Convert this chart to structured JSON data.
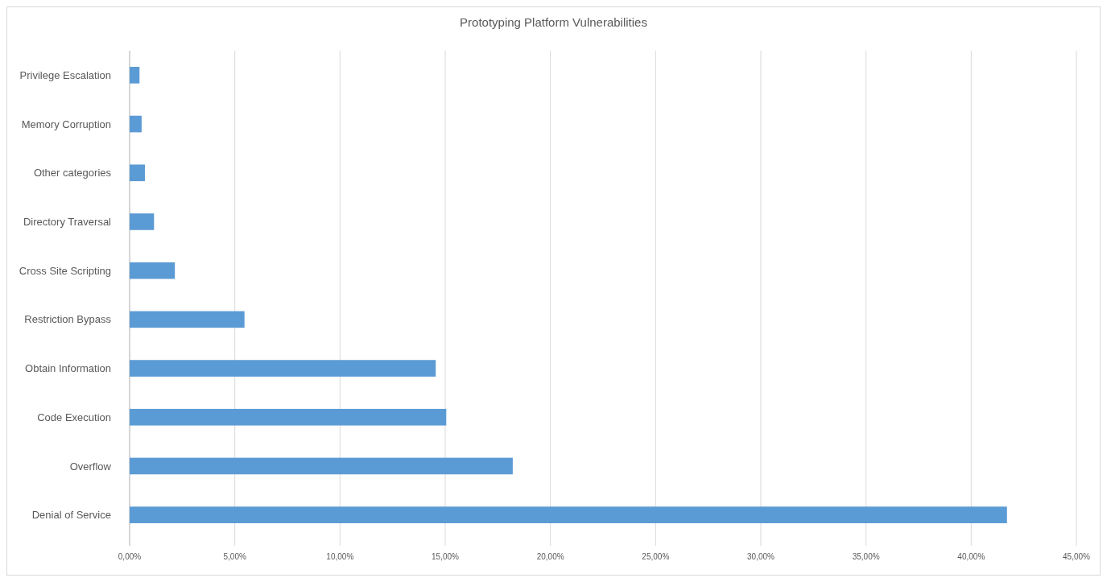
{
  "chart_data": {
    "type": "bar",
    "orientation": "horizontal",
    "title": "Prototyping Platform Vulnerabilities",
    "categories": [
      "Privilege Escalation",
      "Memory Corruption",
      "Other categories",
      "Directory Traversal",
      "Cross Site Scripting",
      "Restriction Bypass",
      "Obtain Information",
      "Code Execution",
      "Overflow",
      "Denial of Service"
    ],
    "values": [
      0.47,
      0.57,
      0.73,
      1.16,
      2.15,
      5.46,
      14.55,
      15.05,
      18.21,
      41.7
    ],
    "color": "#5b9bd5",
    "xlim": [
      0,
      45
    ],
    "xticks": [
      {
        "value": 0,
        "label": "0,00%"
      },
      {
        "value": 5,
        "label": "5,00%"
      },
      {
        "value": 10,
        "label": "10,00%"
      },
      {
        "value": 15,
        "label": "15,00%"
      },
      {
        "value": 20,
        "label": "20,00%"
      },
      {
        "value": 25,
        "label": "25,00%"
      },
      {
        "value": 30,
        "label": "30,00%"
      },
      {
        "value": 35,
        "label": "35,00%"
      },
      {
        "value": 40,
        "label": "40,00%"
      },
      {
        "value": 45,
        "label": "45,00%"
      }
    ],
    "grid": "x"
  }
}
